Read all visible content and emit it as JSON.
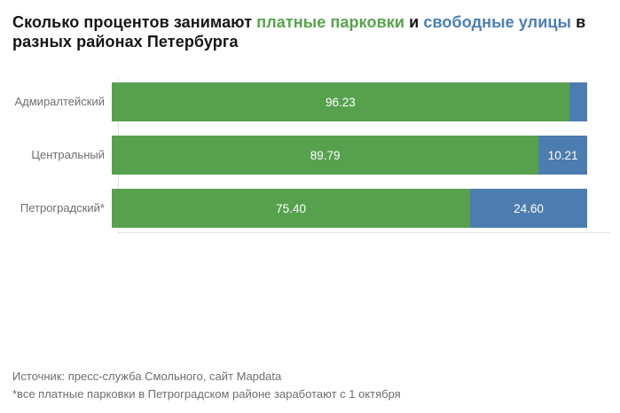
{
  "title": {
    "part1": "Сколько процентов занимают ",
    "part2": "платные парковки",
    "part3": " и ",
    "part4": "свободные улицы",
    "part5": " в",
    "part6": "разных районах Петербурга",
    "text_color": "#161616",
    "paid_color": "#58a44e",
    "free_color": "#4a7fb5"
  },
  "chart_data": {
    "type": "bar",
    "orientation": "horizontal",
    "stacked": true,
    "unit": "percent",
    "xlim": [
      0,
      100
    ],
    "grid": "minimal",
    "legend": "inline-in-title",
    "categories": [
      "Адмиралтейский",
      "Центральный",
      "Петроградский*"
    ],
    "series": [
      {
        "name": "платные парковки",
        "color": "#57a14e",
        "values": [
          96.23,
          89.79,
          75.4
        ],
        "labels": [
          "96.23",
          "89.79",
          "75.40"
        ]
      },
      {
        "name": "свободные улицы",
        "color": "#4d7cae",
        "values": [
          3.77,
          10.21,
          24.6
        ],
        "labels": [
          "",
          "10.21",
          "24.60"
        ]
      }
    ],
    "value_label_color": "#ffffff",
    "category_label_color": "#6e6e6e",
    "gridline_color": "#e4e4e4"
  },
  "footer": {
    "source": "Источник: пресс-служба Смольного, сайт Mapdata",
    "note": "*все платные парковки в Петроградском районе заработают с 1 октября",
    "text_color": "#6e6e6e"
  }
}
